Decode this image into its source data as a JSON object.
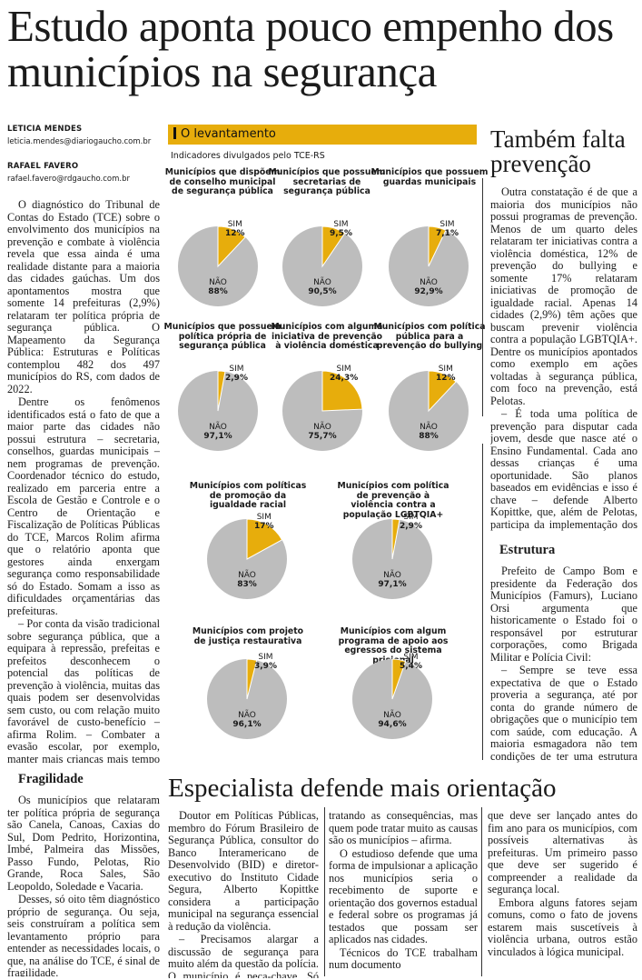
{
  "headline": "Estudo aponta pouco empenho dos municípios na segurança",
  "authors": [
    {
      "name": "LETICIA MENDES",
      "email": "leticia.mendes@diariogaucho.com.br"
    },
    {
      "name": "RAFAEL FAVERO",
      "email": "rafael.favero@rdgaucho.com.br"
    }
  ],
  "main_text": [
    "O diagnóstico do Tribunal de Contas do Estado (TCE) sobre o envolvimento dos municípios na prevenção e combate à violência revela que essa ainda é uma realidade distante para a maioria das cidades gaúchas. Um dos apontamentos mostra que somente 14 prefeituras (2,9%) relataram ter política própria de segurança pública. O Mapeamento da Segurança Pública: Estruturas e Políticas contemplou 482 dos 497 municípios do RS, com dados de 2022.",
    "Dentre os fenômenos identificados está o fato de que a maior parte das cidades não possui estrutura – secretaria, conselhos, guardas municipais – nem programas de prevenção. Coordenador técnico do estudo, realizado em parceria entre a Escola de Gestão e Controle e o Centro de Orientação e Fiscalização de Políticas Públicas do TCE, Marcos Rolim afirma que o relatório aponta que gestores ainda enxergam segurança como responsabilidade só do Estado. Somam a isso as dificuldades orçamentárias das prefeituras.",
    "– Por conta da visão tradicional sobre segurança pública, que a equipara à repressão, prefeitas e prefeitos desconhecem o potencial das políticas de prevenção à violência, muitas das quais podem ser desenvolvidas sem custo, ou com relação muito favorável de custo-benefício – afirma Rolim. – Combater a evasão escolar, por exemplo, manter mais crianças mais tempo na escola é enorme fator protetivo. Todos os estudos do mundo mostram isso – analisa."
  ],
  "fragilidade": {
    "title": "Fragilidade",
    "paragraphs": [
      "Os municípios que relataram ter política própria de segurança são Canela, Canoas, Caxias do Sul, Dom Pedrito, Horizontina, Imbé, Palmeira das Missões, Passo Fundo, Pelotas, Rio Grande, Roca Sales, São Leopoldo, Soledade e Vacaria.",
      "Desses, só oito têm diagnóstico próprio de segurança. Ou seja, seis construíram a política sem levantamento próprio para entender as necessidades locais, o que, na análise do TCE, é sinal de fragilidade."
    ]
  },
  "infographic": {
    "banner": "O levantamento",
    "subtitle": "Indicadores divulgados pelo TCE-RS",
    "sim_label": "SIM",
    "nao_label": "NÃO",
    "pies": [
      {
        "title": "Municípios que dispõem de conselho municipal de segurança pública",
        "sim": "12%",
        "nao": "88%",
        "value": 12
      },
      {
        "title": "Municípios que possuem secretarias de segurança pública",
        "sim": "9,5%",
        "nao": "90,5%",
        "value": 9.5
      },
      {
        "title": "Municípios que possuem guardas municipais",
        "sim": "7,1%",
        "nao": "92,9%",
        "value": 7.1
      },
      {
        "title": "Municípios que possuem política própria de segurança pública",
        "sim": "2,9%",
        "nao": "97,1%",
        "value": 2.9
      },
      {
        "title": "Municípios com alguma iniciativa de prevenção à violência doméstica",
        "sim": "24,3%",
        "nao": "75,7%",
        "value": 24.3
      },
      {
        "title": "Municípios com política pública para a prevenção do bullying",
        "sim": "12%",
        "nao": "88%",
        "value": 12
      },
      {
        "title": "Municípios com políticas de promoção da igualdade racial",
        "sim": "17%",
        "nao": "83%",
        "value": 17
      },
      {
        "title": "Municípios com política de prevenção à violência contra a população LGBTQIA+",
        "sim": "2,9%",
        "nao": "97,1%",
        "value": 2.9
      },
      {
        "title": "Municípios com projeto de justiça restaurativa",
        "sim": "3,9%",
        "nao": "96,1%",
        "value": 3.9
      },
      {
        "title": "Municípios com algum programa de apoio aos egressos do sistema prisional",
        "sim": "5,4%",
        "nao": "94,6%",
        "value": 5.4
      }
    ],
    "colors": {
      "sim": "#e7ad0c",
      "nao": "#bdbdbd"
    }
  },
  "prevencao": {
    "title": "Também falta prevenção",
    "paragraphs": [
      "Outra constatação é de que a maioria dos municípios não possui programas de prevenção. Menos de um quarto deles relataram ter iniciativas contra a violência doméstica, 12% de prevenção do bullying e somente 17% relataram iniciativas de promoção de igualdade racial. Apenas 14 cidades (2,9%) têm ações que buscam prevenir violência contra a população LGBTQIA+. Dentre os municípios apontados como exemplo em ações voltadas à segurança pública, com foco na prevenção, está Pelotas.",
      "– É toda uma política de prevenção para disputar cada jovem, desde que nasce até o Ensino Fundamental. Cada ano dessas crianças é uma oportunidade. São planos baseados em evidências e isso é chave – defende Alberto Kopittke, que, além de Pelotas, participa da implementação dos programas em Lajeado e Santa Cruz do Sul."
    ]
  },
  "estrutura": {
    "title": "Estrutura",
    "paragraphs": [
      "Prefeito de Campo Bom e presidente da Federação dos Municípios (Famurs), Luciano Orsi argumenta que historicamente o Estado foi o responsável por estruturar corporações, como Brigada Militar e Polícia Civil:",
      "– Sempre se teve essa expectativa de que o Estado proveria a segurança, até por conta do grande número de obrigações que o município tem com saúde, com educação. A maioria esmagadora não tem condições de ter uma estrutura de segurança pública."
    ]
  },
  "especialista": {
    "title": "Especialista defende mais orientação",
    "col1": [
      "Doutor em Políticas Públicas, membro do Fórum Brasileiro de Segurança Pública, consultor do Banco Interamericano de Desenvolvido (BID) e diretor-executivo do Instituto Cidade Segura, Alberto Kopittke considera a participação municipal na segurança essencial à redução da violência.",
      "– Precisamos alargar a discussão de segurança para muito além da questão da polícia. O município é peça-chave. Só ficamos"
    ],
    "col2": [
      "tratando as consequências, mas quem pode tratar muito as causas são os municípios – afirma.",
      "O estudioso defende que uma forma de impulsionar a aplicação nos municípios seria o recebimento de suporte e orientação dos governos estadual e federal sobre os programas já testados que possam ser aplicados nas cidades.",
      "Técnicos do TCE trabalham num documento"
    ],
    "col3": [
      "que deve ser lançado antes do fim ano para os municípios, com possíveis alternativas às prefeituras. Um primeiro passo que deve ser sugerido é compreender a realidade da segurança local.",
      "Embora alguns fatores sejam comuns, como o fato de jovens estarem mais suscetíveis à violência urbana, outros estão vinculados à lógica municipal."
    ]
  }
}
